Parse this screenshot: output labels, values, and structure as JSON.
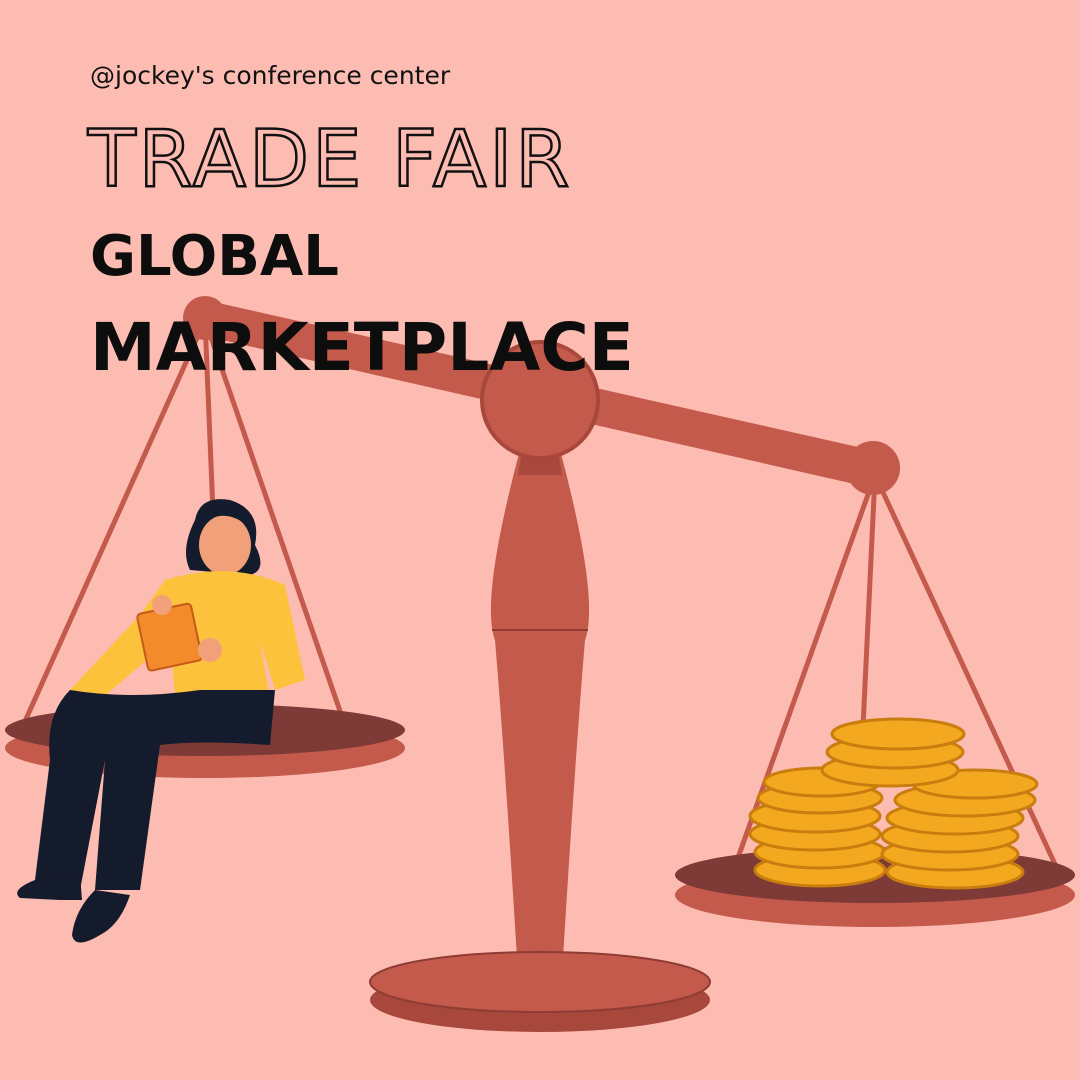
{
  "header": {
    "handle": "@jockey's conference center",
    "title": "TRADE FAIR",
    "subtitle_lines": [
      "GLOBAL",
      "MARKETPLACE"
    ]
  }
}
